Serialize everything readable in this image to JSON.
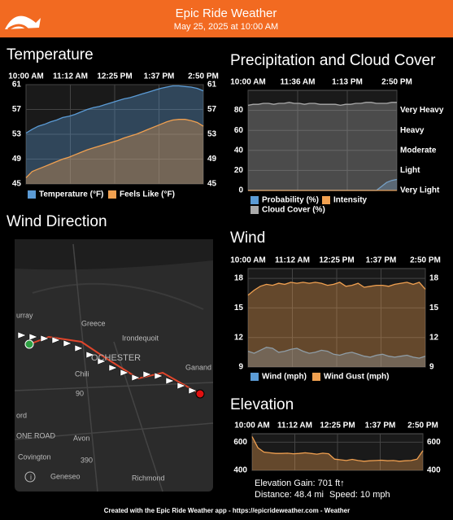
{
  "header": {
    "title": "Epic Ride Weather",
    "subtitle": "May 25, 2025 at 10:00 AM"
  },
  "chart_data": [
    {
      "type": "area",
      "title": "Temperature",
      "xticks": [
        "10:00 AM",
        "11:12 AM",
        "12:25 PM",
        "1:37 PM",
        "2:50 PM"
      ],
      "ylim": [
        45,
        61
      ],
      "yticks": [
        45,
        49,
        53,
        57,
        61
      ],
      "grid": true,
      "series": [
        {
          "name": "Temperature (°F)",
          "color": "#5b9bd5",
          "values": [
            53.2,
            53.8,
            54.3,
            54.6,
            55.0,
            55.3,
            55.7,
            55.9,
            56.2,
            56.6,
            57.0,
            57.3,
            57.5,
            57.8,
            58.1,
            58.4,
            58.7,
            58.9,
            59.2,
            59.5,
            59.8,
            60.1,
            60.4,
            60.6,
            60.8,
            60.8,
            60.7,
            60.6,
            60.4,
            60.0
          ]
        },
        {
          "name": "Feels Like (°F)",
          "color": "#f0a050",
          "values": [
            46.0,
            47.0,
            47.4,
            47.8,
            48.2,
            48.6,
            49.0,
            49.3,
            49.7,
            50.1,
            50.5,
            50.8,
            51.1,
            51.4,
            51.7,
            52.0,
            52.4,
            52.7,
            53.0,
            53.4,
            53.8,
            54.2,
            54.6,
            55.0,
            55.3,
            55.4,
            55.4,
            55.2,
            54.9,
            54.3
          ]
        }
      ]
    },
    {
      "type": "area",
      "title": "Precipitation and Cloud Cover",
      "xticks": [
        "10:00 AM",
        "11:36 AM",
        "1:13 PM",
        "2:50 PM"
      ],
      "ylim": [
        0,
        100
      ],
      "yticks": [
        0,
        20,
        40,
        60,
        80
      ],
      "grid": true,
      "y2lim": [
        0,
        100
      ],
      "y2ticks": [
        {
          "value": 0,
          "label": "Very Light"
        },
        {
          "value": 20,
          "label": "Light"
        },
        {
          "value": 40,
          "label": "Moderate"
        },
        {
          "value": 60,
          "label": "Heavy"
        },
        {
          "value": 80,
          "label": "Very Heavy"
        }
      ],
      "series": [
        {
          "name": "Probability (%)",
          "color": "#5b9bd5",
          "values": [
            0,
            0,
            0,
            0,
            0,
            0,
            0,
            0,
            0,
            0,
            0,
            0,
            0,
            0,
            0,
            0,
            0,
            0,
            0,
            0,
            0,
            0,
            0,
            0,
            0,
            0,
            4,
            8,
            10,
            11
          ]
        },
        {
          "name": "Intensity",
          "color": "#f0a050",
          "axis": "y2",
          "values": [
            0,
            0,
            0,
            0,
            0,
            0,
            0,
            0,
            0,
            0,
            0,
            0,
            0,
            0,
            0,
            0,
            0,
            0,
            0,
            0,
            0,
            0,
            0,
            0,
            0,
            0,
            0,
            0,
            0,
            0
          ]
        },
        {
          "name": "Cloud Cover (%)",
          "color": "#aaaaaa",
          "values": [
            85,
            86,
            86,
            87,
            87,
            86,
            87,
            87,
            88,
            87,
            87,
            86,
            87,
            87,
            86,
            86,
            86,
            86,
            85,
            86,
            86,
            87,
            87,
            88,
            88,
            87,
            87,
            87,
            88,
            88
          ]
        }
      ]
    },
    {
      "type": "area",
      "title": "Wind",
      "xticks": [
        "10:00 AM",
        "11:12 AM",
        "12:25 PM",
        "1:37 PM",
        "2:50 PM"
      ],
      "ylim": [
        9,
        19
      ],
      "yticks": [
        9,
        12,
        15,
        18
      ],
      "grid": true,
      "series": [
        {
          "name": "Wind (mph)",
          "color": "#5b9bd5",
          "values": [
            10.6,
            10.4,
            10.7,
            11.0,
            10.9,
            10.5,
            10.6,
            10.8,
            10.9,
            10.6,
            10.4,
            10.5,
            10.7,
            10.6,
            10.3,
            10.2,
            10.4,
            10.5,
            10.3,
            10.1,
            10.0,
            10.2,
            10.3,
            10.1,
            10.0,
            10.1,
            10.2,
            10.0,
            9.9,
            10.1
          ]
        },
        {
          "name": "Wind Gust (mph)",
          "color": "#f0a050",
          "values": [
            16.3,
            16.8,
            17.2,
            17.4,
            17.3,
            17.5,
            17.4,
            17.6,
            17.5,
            17.6,
            17.5,
            17.6,
            17.5,
            17.3,
            17.4,
            17.6,
            17.2,
            17.3,
            17.5,
            17.1,
            17.2,
            17.3,
            17.3,
            17.2,
            17.4,
            17.5,
            17.6,
            17.4,
            17.6,
            16.9
          ]
        }
      ]
    },
    {
      "type": "area",
      "title": "Elevation",
      "xticks": [
        "10:00 AM",
        "11:12 AM",
        "12:25 PM",
        "1:37 PM",
        "2:50 PM"
      ],
      "ylim": [
        400,
        660
      ],
      "yticks": [
        400,
        600
      ],
      "grid": true,
      "series": [
        {
          "name": "Elevation",
          "color": "#f0a050",
          "values": [
            640,
            560,
            530,
            525,
            520,
            520,
            522,
            518,
            520,
            525,
            520,
            515,
            522,
            518,
            480,
            475,
            470,
            478,
            470,
            465,
            468,
            470,
            472,
            468,
            470,
            465,
            468,
            470,
            480,
            540
          ]
        }
      ],
      "stats": [
        "Elevation Gain: 701 ft↑",
        "Distance: 48.4 mi",
        "Speed: 10 mph"
      ]
    }
  ],
  "map": {
    "title": "Wind Direction",
    "labels": [
      "urray",
      "Greece",
      "Irondequoit",
      "OCHESTER",
      "Chili",
      "Ganand",
      "90",
      "ord",
      "ONE ROAD",
      "Avon",
      "390",
      "Covington",
      "Geneseo",
      "Richmond",
      "i"
    ]
  },
  "footer": "Created with the Epic Ride Weather app - https://epicrideweather.com -  Weather"
}
